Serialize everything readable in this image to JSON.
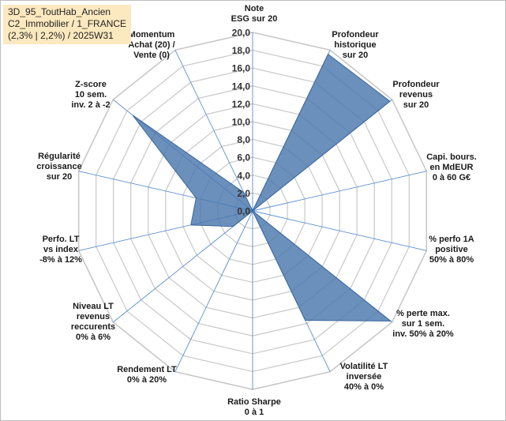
{
  "info_box": {
    "line1": "3D_95_ToutHab_Ancien",
    "line2": "C2_Immobilier / 1_FRANCE",
    "line3": "(2,3% | 2,2%) / 2025W31"
  },
  "colors": {
    "fill": "#4a77ad",
    "stroke": "#3a669c",
    "grid": "#c8c8c8",
    "spoke": "#5b8fcf"
  },
  "chart_data": {
    "type": "radar",
    "range": [
      0,
      20
    ],
    "tick_step": 2,
    "ticks": [
      "0,0",
      "2,0",
      "4,0",
      "6,0",
      "8,0",
      "10,0",
      "12,0",
      "14,0",
      "16,0",
      "18,0",
      "20,0"
    ],
    "axes": [
      {
        "lines": [
          "Note",
          "ESG sur 20"
        ],
        "value": 0
      },
      {
        "lines": [
          "Profondeur",
          "historique",
          "sur 20"
        ],
        "value": 19.5
      },
      {
        "lines": [
          "Profondeur",
          "revenus",
          "sur 20"
        ],
        "value": 19.7
      },
      {
        "lines": [
          "Capi. bours.",
          "en MdEUR",
          "0 à 60 G€"
        ],
        "value": 0
      },
      {
        "lines": [
          "% perfo 1A",
          "positive",
          "50% à 80%"
        ],
        "value": 0
      },
      {
        "lines": [
          "% perte max.",
          "sur 1 sem.",
          "inv. 50% à 20%"
        ],
        "value": 19.8
      },
      {
        "lines": [
          "Volatilité LT",
          "inversée",
          "40% à 0%"
        ],
        "value": 13.6
      },
      {
        "lines": [
          "Ratio Sharpe",
          "0 à 1"
        ],
        "value": 0
      },
      {
        "lines": [
          "Rendement LT",
          "0% à 20%"
        ],
        "value": 0
      },
      {
        "lines": [
          "Niveau LT",
          "revenus",
          "reccurents",
          "0% à 6%"
        ],
        "value": 2.8
      },
      {
        "lines": [
          "Perfo. LT",
          "vs index",
          "-8% à 12%"
        ],
        "value": 7.1
      },
      {
        "lines": [
          "Régularité",
          "croissance",
          "sur 20"
        ],
        "value": 6.5
      },
      {
        "lines": [
          "Z-score",
          "10 sem.",
          "inv. 2 à -2"
        ],
        "value": 17.2
      },
      {
        "lines": [
          "Momentum",
          "Achat (20) /",
          "Vente (0)"
        ],
        "value": 2.3
      }
    ]
  }
}
